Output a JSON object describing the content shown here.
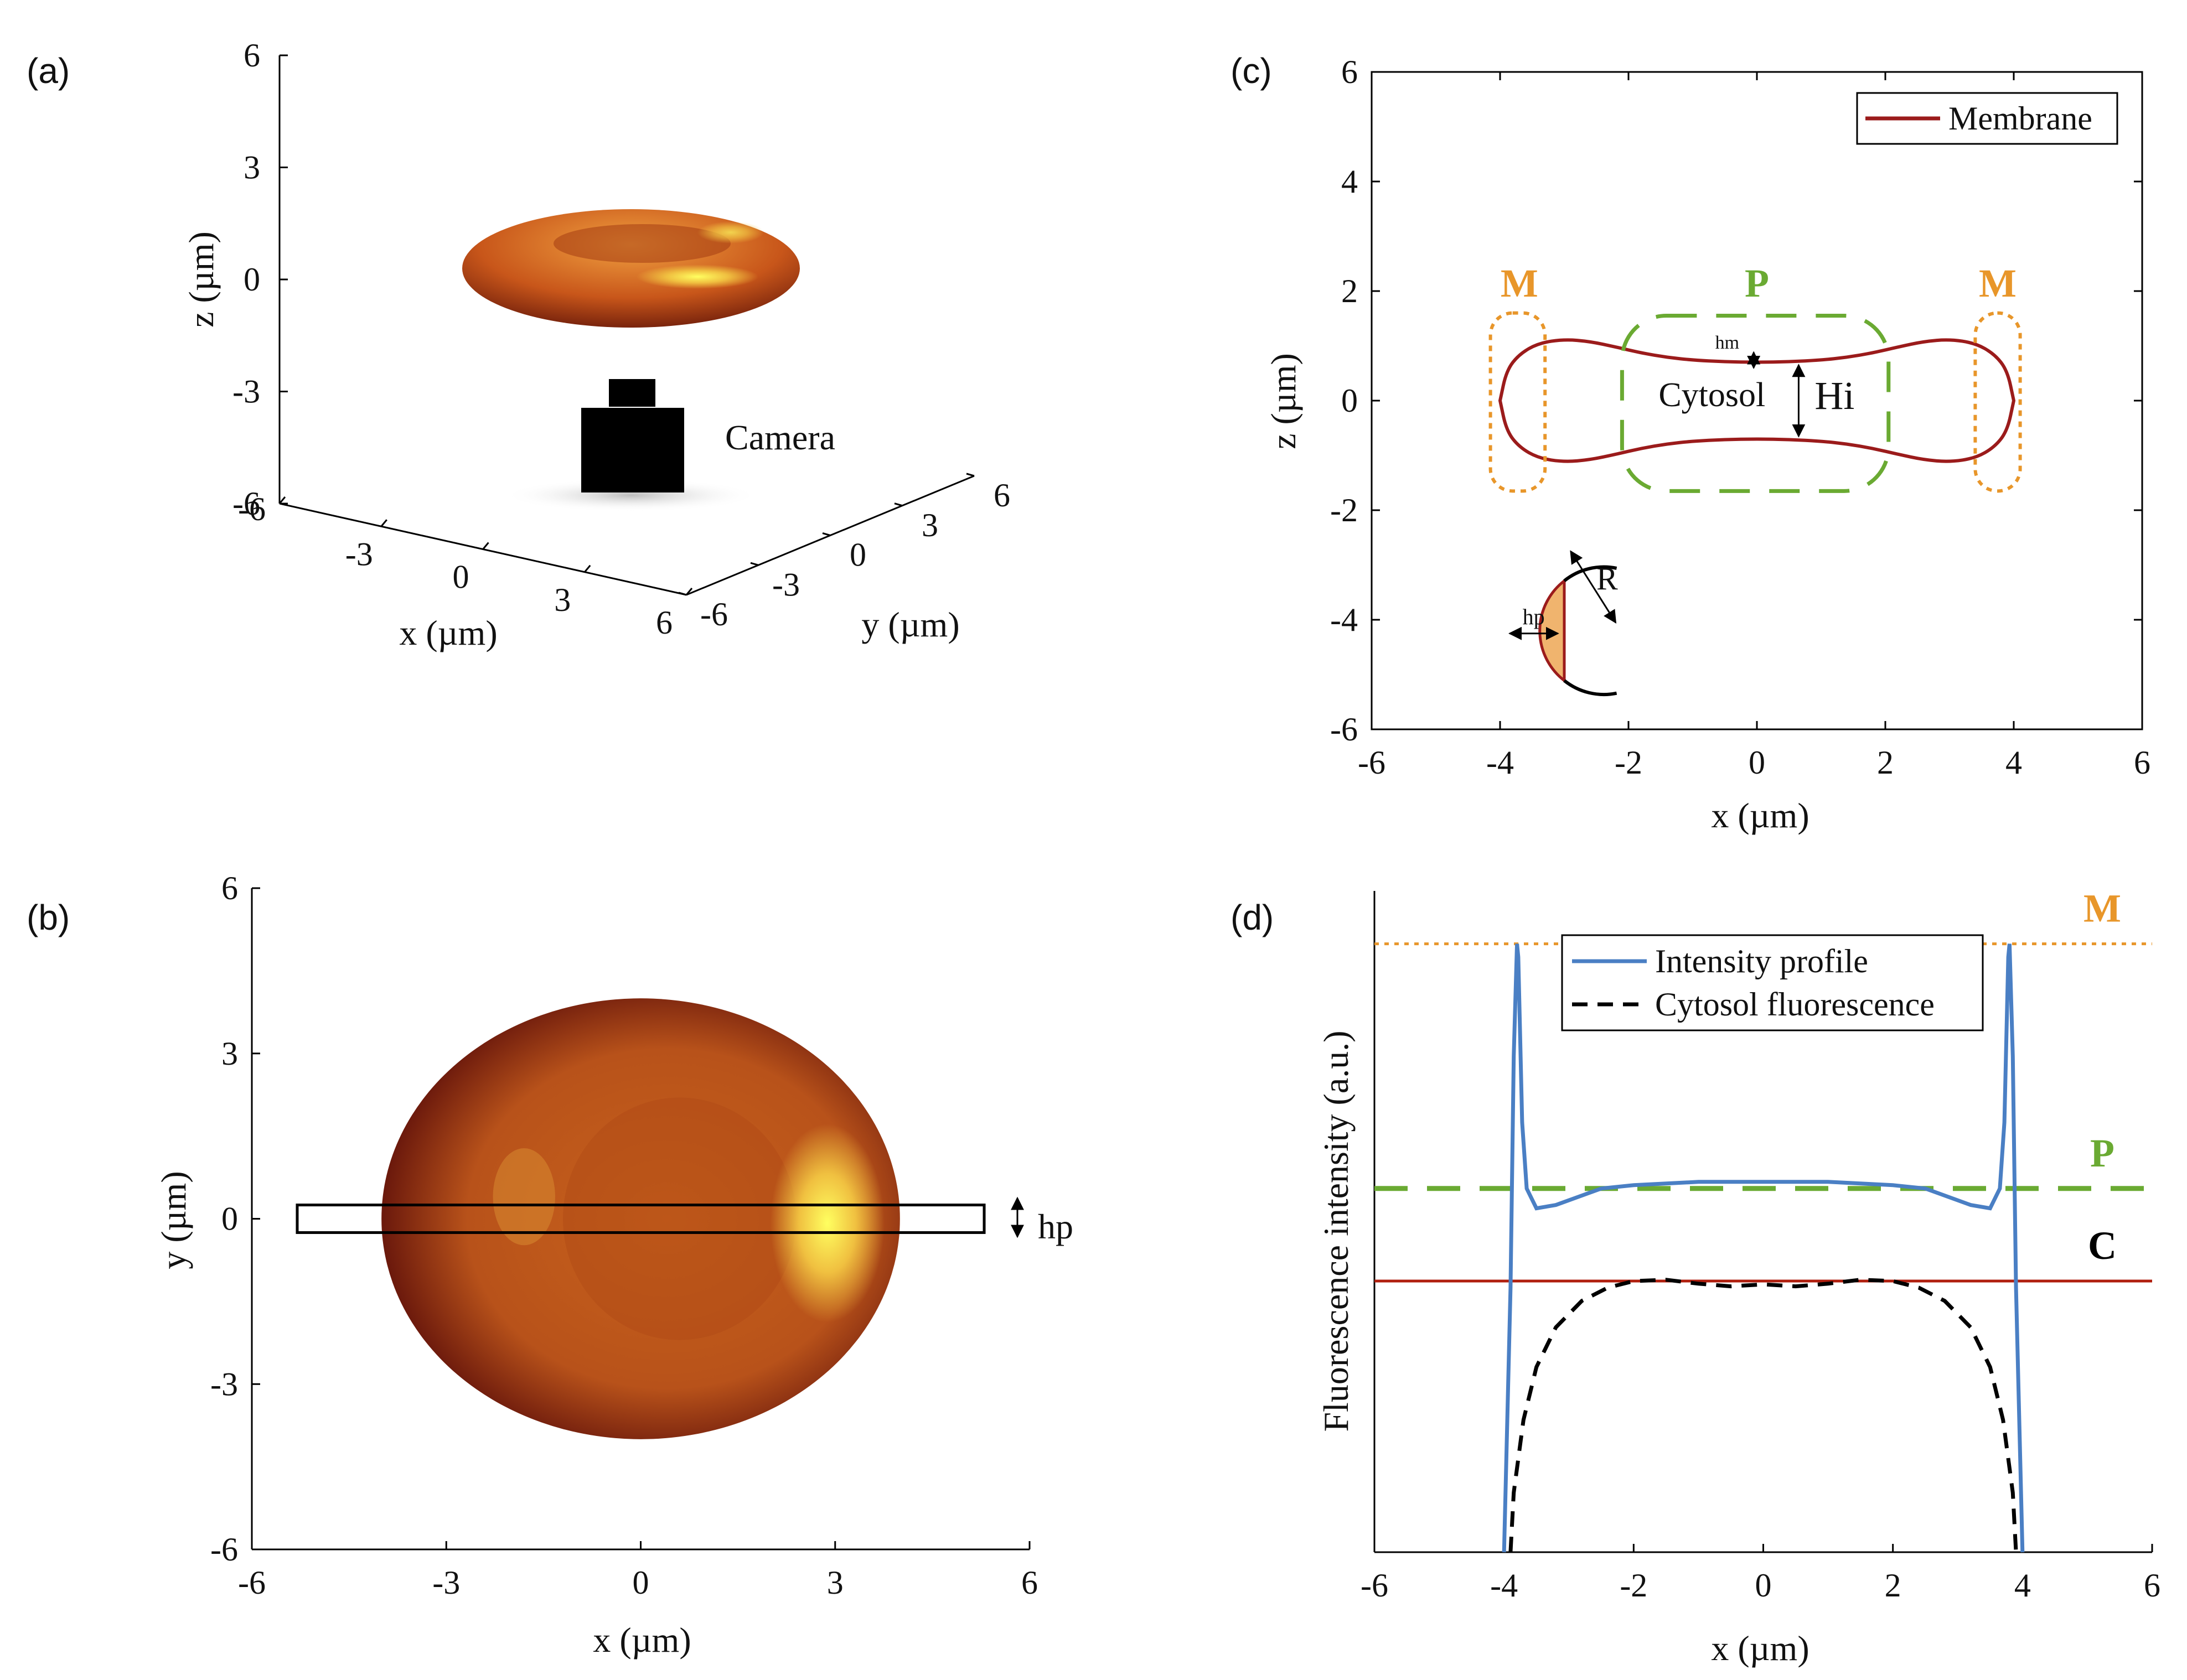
{
  "chart_data": [
    {
      "panel": "(a)",
      "type": "surface3d",
      "xlabel": "x (µm)",
      "ylabel": "y (µm)",
      "zlabel": "z (µm)",
      "x_ticks": [
        "-6",
        "-3",
        "0",
        "3",
        "6"
      ],
      "y_ticks": [
        "-6",
        "-3",
        "0",
        "3",
        "6"
      ],
      "z_ticks": [
        "6",
        "3",
        "0",
        "-3",
        "-6"
      ],
      "xlim": [
        -6,
        6
      ],
      "ylim": [
        -6,
        6
      ],
      "zlim": [
        -6,
        6
      ],
      "annotations": [
        "Camera"
      ]
    },
    {
      "panel": "(b)",
      "type": "surface2d",
      "xlabel": "x (µm)",
      "ylabel": "y (µm)",
      "x_ticks": [
        "-6",
        "-3",
        "0",
        "3",
        "6"
      ],
      "y_ticks": [
        "6",
        "3",
        "0",
        "-3",
        "-6"
      ],
      "xlim": [
        -6,
        6
      ],
      "ylim": [
        -6,
        6
      ],
      "cell_radius_x": 4,
      "cell_radius_y": 4,
      "slab_x": [
        -5.3,
        5.3
      ],
      "slab_y": [
        -0.15,
        0.15
      ],
      "annotations": [
        "hp"
      ]
    },
    {
      "panel": "(c)",
      "type": "line",
      "xlabel": "x (µm)",
      "ylabel": "z (µm)",
      "x_ticks": [
        "-6",
        "-4",
        "-2",
        "0",
        "2",
        "4",
        "6"
      ],
      "y_ticks": [
        "6",
        "4",
        "2",
        "0",
        "-2",
        "-4",
        "-6"
      ],
      "xlim": [
        -6,
        6
      ],
      "ylim": [
        -6,
        6
      ],
      "legend": [
        {
          "label": "Membrane",
          "color": "#9b1b1b"
        }
      ],
      "legend_position": "top-right",
      "series": [
        {
          "name": "Membrane",
          "color": "#9b1b1b",
          "x": [
            -4,
            -3.9,
            -3.7,
            -3.4,
            -3.0,
            -2.6,
            -2.2,
            -1.8,
            -1.4,
            -1.0,
            -0.5,
            0,
            0.5,
            1.0,
            1.4,
            1.8,
            2.2,
            2.6,
            3.0,
            3.4,
            3.7,
            3.9,
            4
          ],
          "z": [
            0,
            0.55,
            0.85,
            1.05,
            1.12,
            1.08,
            0.98,
            0.87,
            0.79,
            0.74,
            0.71,
            0.7,
            0.71,
            0.74,
            0.79,
            0.87,
            0.98,
            1.08,
            1.12,
            1.05,
            0.85,
            0.55,
            0
          ]
        }
      ],
      "region_labels": {
        "M": "M",
        "P": "P",
        "cytosol": "Cytosol",
        "Hi": "Hi",
        "hm": "hm",
        "hp": "hp",
        "R": "R"
      },
      "colors": {
        "M": "#e8962a",
        "P": "#6aaa32",
        "membrane": "#9b1b1b",
        "fill": "#f0b46e"
      }
    },
    {
      "panel": "(d)",
      "type": "line",
      "xlabel": "x (µm)",
      "ylabel": "Fluorescence intensity (a.u.)",
      "x_ticks": [
        "-6",
        "-4",
        "-2",
        "0",
        "2",
        "4",
        "6"
      ],
      "xlim": [
        -6,
        6
      ],
      "ylim": [
        0,
        1
      ],
      "legend": [
        {
          "label": "Intensity profile",
          "color": "#4a7fc4",
          "style": "solid"
        },
        {
          "label": "Cytosol fluorescence",
          "color": "#000000",
          "style": "dashed"
        }
      ],
      "legend_position": "top",
      "reference_lines": [
        {
          "label": "M",
          "y": 0.92,
          "color": "#e8962a",
          "style": "dotted"
        },
        {
          "label": "P",
          "y": 0.55,
          "color": "#6aaa32",
          "style": "dashed"
        },
        {
          "label": "C",
          "y": 0.41,
          "color": "#b01e0e",
          "style": "solid"
        }
      ],
      "series": [
        {
          "name": "Intensity profile",
          "color": "#4a7fc4",
          "x": [
            -4.0,
            -3.9,
            -3.85,
            -3.8,
            -3.78,
            -3.72,
            -3.65,
            -3.5,
            -3.2,
            -2.5,
            -2.0,
            -1.0,
            0,
            1.0,
            2.0,
            2.5,
            3.2,
            3.5,
            3.65,
            3.72,
            3.78,
            3.8,
            3.85,
            3.9,
            4.0
          ],
          "y": [
            0.0,
            0.4,
            0.75,
            0.92,
            0.9,
            0.65,
            0.55,
            0.52,
            0.525,
            0.55,
            0.555,
            0.56,
            0.56,
            0.56,
            0.555,
            0.55,
            0.525,
            0.52,
            0.55,
            0.65,
            0.9,
            0.92,
            0.75,
            0.4,
            0.0
          ]
        },
        {
          "name": "Cytosol fluorescence",
          "color": "#000000",
          "x": [
            -3.9,
            -3.85,
            -3.7,
            -3.5,
            -3.2,
            -2.8,
            -2.4,
            -2.0,
            -1.5,
            -1.0,
            -0.5,
            0,
            0.5,
            1.0,
            1.5,
            2.0,
            2.4,
            2.8,
            3.2,
            3.5,
            3.7,
            3.85,
            3.9
          ],
          "y": [
            0.0,
            0.09,
            0.2,
            0.28,
            0.34,
            0.38,
            0.4,
            0.41,
            0.412,
            0.406,
            0.402,
            0.405,
            0.402,
            0.406,
            0.412,
            0.41,
            0.4,
            0.38,
            0.34,
            0.28,
            0.2,
            0.09,
            0.0
          ]
        }
      ]
    }
  ]
}
